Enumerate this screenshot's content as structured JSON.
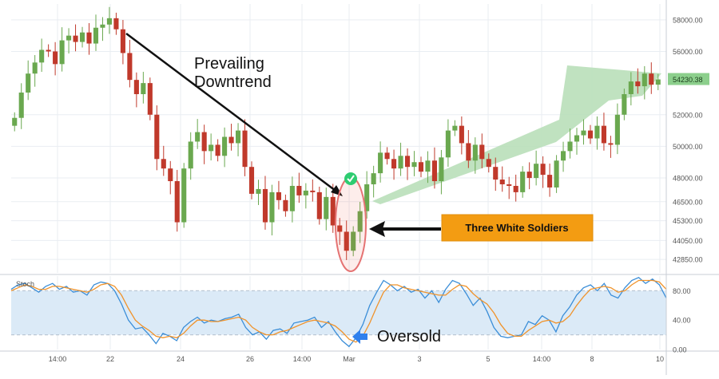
{
  "colors": {
    "bull": "#6aa84f",
    "bear": "#c0392b",
    "grid": "#e9edf2",
    "price_label_bg": "#8ccf8c",
    "callout_bg": "#f39c12",
    "stoch_band": "#dbeaf7",
    "stoch_k": "#3b8ed8",
    "stoch_d": "#f0932b",
    "arrow_green": "#b9dfb9",
    "oversold_arrow": "#2f80ed"
  },
  "icons": {
    "check": "check-circle-icon",
    "oversold": "left-arrow-icon",
    "callout": "left-arrow-icon"
  },
  "chart_data": [
    {
      "type": "candlestick",
      "ylim": [
        42000,
        59000
      ],
      "y_ticks": [
        "58000.00",
        "56000.00",
        "54230.38",
        "52000.00",
        "50000.00",
        "48000.00",
        "46500.00",
        "45300.00",
        "44050.00",
        "42850.00"
      ],
      "current_price": "54230.38",
      "x_labels": [
        "14:00",
        "22",
        "24",
        "26",
        "14:00",
        "Mar",
        "3",
        "5",
        "14:00",
        "8",
        "10"
      ],
      "annotations": {
        "prevailing_trend": [
          "Prevailing",
          "Downtrend"
        ],
        "pattern_label": "Three White Soldiers"
      },
      "closes": [
        51800,
        53400,
        54600,
        55300,
        56100,
        56000,
        55200,
        56700,
        57000,
        56600,
        57200,
        56500,
        57500,
        57700,
        58100,
        57400,
        55900,
        54200,
        53300,
        54000,
        52000,
        49200,
        48600,
        47800,
        45200,
        48600,
        50300,
        50900,
        49700,
        50100,
        49400,
        50600,
        50200,
        51000,
        48700,
        47000,
        47300,
        45200,
        47100,
        46600,
        45900,
        47500,
        46900,
        47200,
        47100,
        45400,
        46800,
        45000,
        44600,
        43400,
        44600,
        45900,
        47600,
        48300,
        49600,
        49200,
        48600,
        49400,
        48700,
        49000,
        48400,
        49100,
        47800,
        49300,
        51000,
        51300,
        50200,
        49100,
        50100,
        49200,
        48700,
        47900,
        47600,
        47500,
        47100,
        48400,
        48000,
        48900,
        48200,
        47400,
        49100,
        49700,
        50300,
        50700,
        51000,
        50500,
        51300,
        50200,
        50100,
        52000,
        53300,
        54100,
        53800,
        54600,
        53900,
        54230
      ]
    },
    {
      "type": "line",
      "title": "Stoch",
      "ylim": [
        0,
        100
      ],
      "y_ticks": [
        "80.00",
        "40.00",
        "0.00"
      ],
      "band": [
        20,
        80
      ],
      "series": [
        {
          "values": [
            82,
            88,
            90,
            84,
            78,
            86,
            90,
            82,
            86,
            78,
            80,
            74,
            88,
            92,
            90,
            80,
            62,
            40,
            28,
            30,
            20,
            8,
            22,
            18,
            12,
            30,
            38,
            44,
            36,
            40,
            38,
            42,
            44,
            48,
            30,
            20,
            24,
            14,
            26,
            28,
            22,
            36,
            38,
            40,
            44,
            30,
            38,
            24,
            12,
            4,
            16,
            34,
            60,
            78,
            94,
            88,
            80,
            86,
            78,
            82,
            70,
            80,
            64,
            82,
            94,
            90,
            76,
            60,
            70,
            52,
            30,
            18,
            16,
            18,
            20,
            38,
            34,
            46,
            40,
            24,
            46,
            58,
            74,
            84,
            88,
            80,
            90,
            74,
            70,
            84,
            94,
            98,
            90,
            96,
            88,
            70
          ]
        },
        {
          "values": [
            80,
            84,
            88,
            86,
            82,
            82,
            86,
            86,
            84,
            82,
            80,
            78,
            82,
            88,
            90,
            86,
            74,
            56,
            40,
            32,
            26,
            18,
            16,
            18,
            16,
            22,
            32,
            40,
            40,
            38,
            38,
            40,
            42,
            44,
            40,
            30,
            24,
            20,
            20,
            24,
            26,
            30,
            34,
            38,
            40,
            38,
            36,
            32,
            24,
            14,
            10,
            18,
            36,
            58,
            78,
            88,
            88,
            84,
            82,
            80,
            78,
            76,
            74,
            74,
            82,
            88,
            86,
            76,
            68,
            62,
            50,
            34,
            22,
            18,
            18,
            26,
            32,
            38,
            40,
            36,
            38,
            46,
            60,
            72,
            82,
            84,
            86,
            84,
            78,
            80,
            88,
            94,
            94,
            94,
            92,
            82
          ]
        }
      ],
      "x_labels": [
        "14:00",
        "22",
        "24",
        "26",
        "14:00",
        "Mar",
        "3",
        "5",
        "14:00",
        "8",
        "10"
      ],
      "annotation": "Oversold"
    }
  ]
}
